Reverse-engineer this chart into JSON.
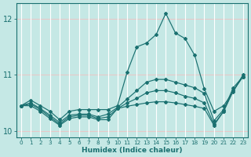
{
  "xlabel": "Humidex (Indice chaleur)",
  "background_color": "#c5e8e5",
  "grid_color_h": "#e8c8c8",
  "grid_color_v": "#ffffff",
  "line_color": "#1a7070",
  "xmin": -0.5,
  "xmax": 23.5,
  "ymin": 9.88,
  "ymax": 12.28,
  "yticks": [
    10,
    11,
    12
  ],
  "xticks": [
    0,
    1,
    2,
    3,
    4,
    5,
    6,
    7,
    8,
    9,
    10,
    11,
    12,
    13,
    14,
    15,
    16,
    17,
    18,
    19,
    20,
    21,
    22,
    23
  ],
  "series": {
    "s1": [
      10.45,
      10.55,
      10.45,
      10.35,
      10.2,
      10.35,
      10.38,
      10.38,
      10.38,
      10.38,
      10.45,
      11.05,
      11.5,
      11.57,
      11.72,
      12.1,
      11.75,
      11.65,
      11.35,
      10.75,
      10.35,
      10.45,
      10.7,
      11.0
    ],
    "s2": [
      10.45,
      10.5,
      10.4,
      10.28,
      10.15,
      10.28,
      10.3,
      10.3,
      10.25,
      10.3,
      10.42,
      10.57,
      10.72,
      10.87,
      10.92,
      10.92,
      10.87,
      10.82,
      10.77,
      10.67,
      10.18,
      10.38,
      10.77,
      10.97
    ],
    "s3": [
      10.45,
      10.45,
      10.35,
      10.22,
      10.1,
      10.22,
      10.25,
      10.25,
      10.2,
      10.2,
      10.4,
      10.44,
      10.47,
      10.5,
      10.52,
      10.52,
      10.5,
      10.47,
      10.44,
      10.4,
      10.1,
      10.35,
      10.72,
      10.97
    ],
    "s4": [
      10.45,
      10.48,
      10.38,
      10.25,
      10.12,
      10.25,
      10.28,
      10.28,
      10.22,
      10.25,
      10.4,
      10.5,
      10.58,
      10.68,
      10.72,
      10.72,
      10.68,
      10.62,
      10.58,
      10.5,
      10.12,
      10.35,
      10.72,
      10.97
    ]
  }
}
